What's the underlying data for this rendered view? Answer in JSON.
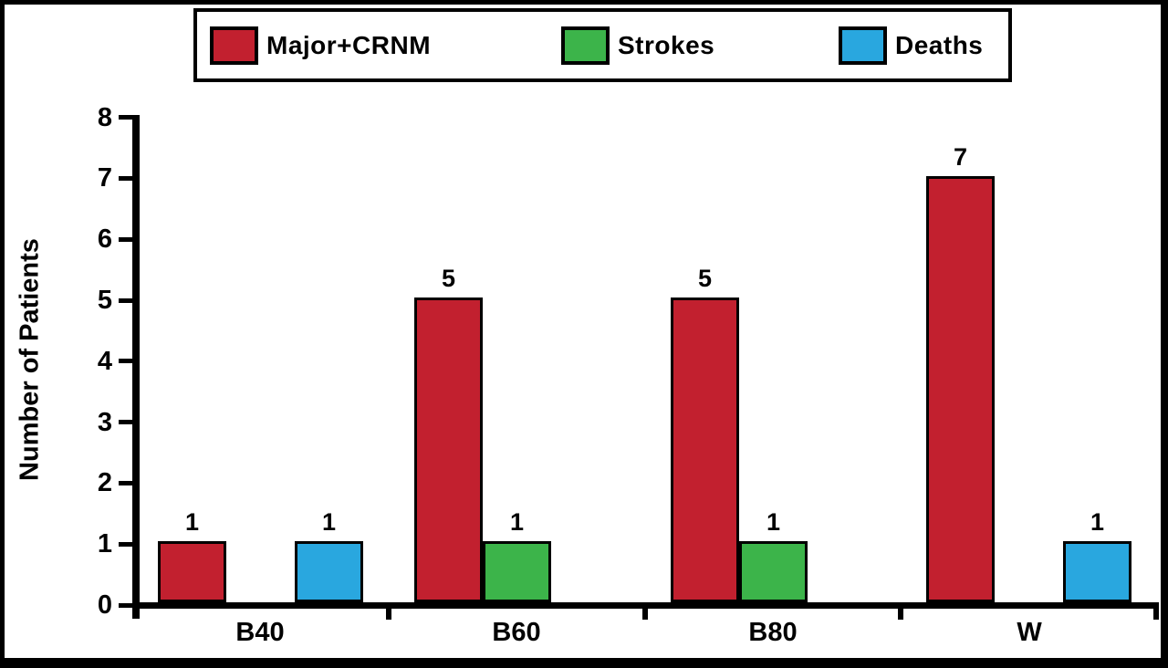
{
  "chart_data": {
    "type": "bar",
    "title": "",
    "categories": [
      "B40",
      "B60",
      "B80",
      "W"
    ],
    "series": [
      {
        "name": "Major+CRNM",
        "color": "#C2202F",
        "values": [
          1,
          5,
          5,
          7
        ]
      },
      {
        "name": "Strokes",
        "color": "#3CB44A",
        "values": [
          0,
          1,
          1,
          0
        ]
      },
      {
        "name": "Deaths",
        "color": "#29A7DF",
        "values": [
          1,
          0,
          0,
          1
        ]
      }
    ],
    "xlabel": "",
    "ylabel": "Number of Patients",
    "ylim": [
      0,
      8
    ],
    "yticks": [
      0,
      1,
      2,
      3,
      4,
      5,
      6,
      7,
      8
    ],
    "grid": false,
    "legend_position": "top",
    "bar_value_labels": true,
    "zero_value_bars_omitted": true,
    "axis_color": "#000000",
    "bar_outline_color": "#000000",
    "background_color": "#FFFFFF"
  }
}
